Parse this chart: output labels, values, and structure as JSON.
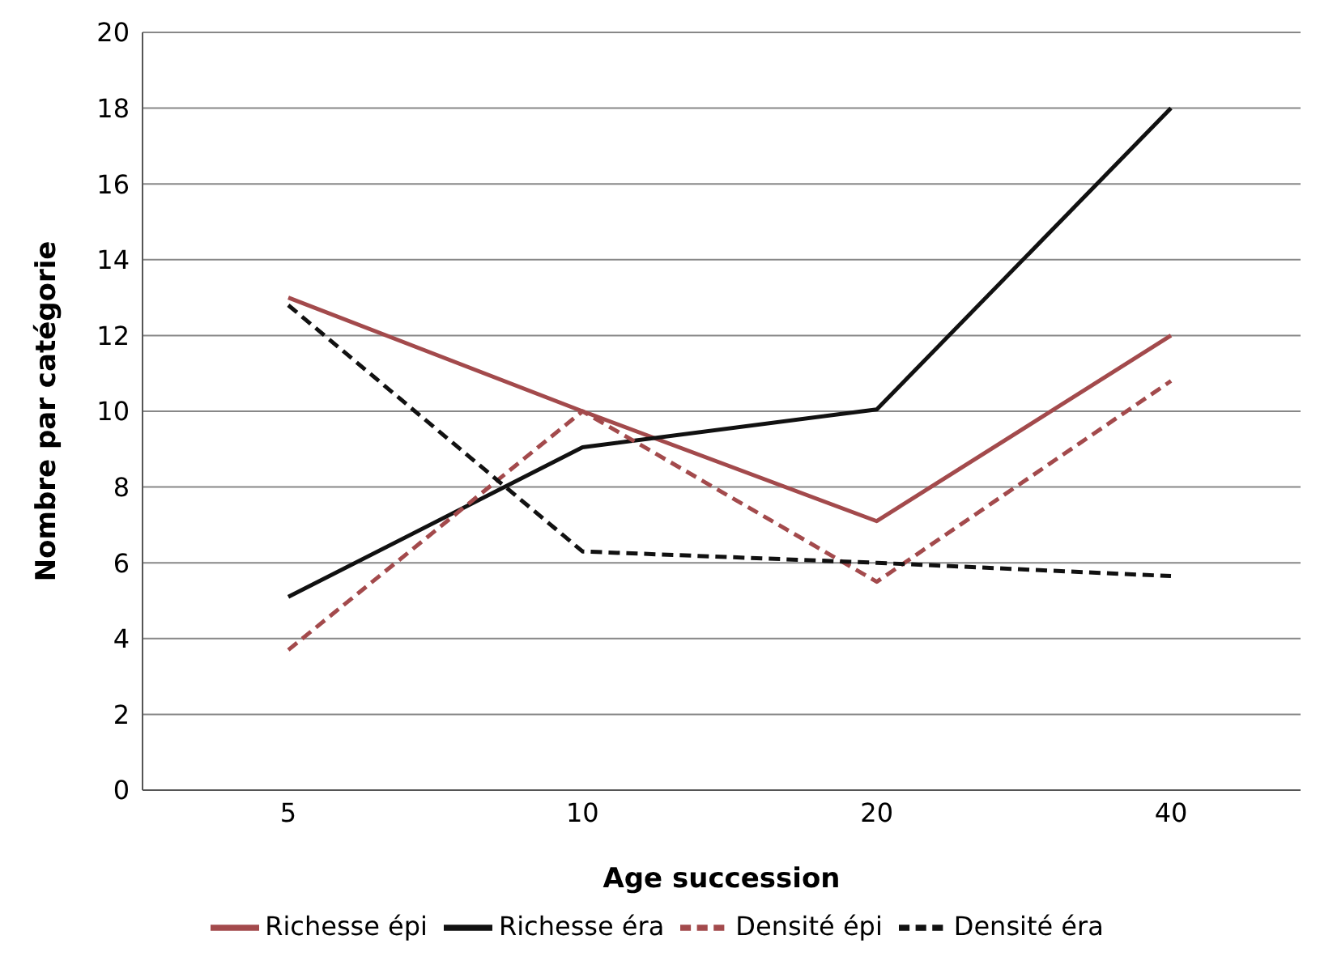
{
  "chart_data": {
    "type": "line",
    "xlabel": "Age succession",
    "ylabel": "Nombre par catégorie",
    "categories": [
      "5",
      "10",
      "20",
      "40"
    ],
    "series": [
      {
        "name": "Richesse épi",
        "color": "#a34a4c",
        "values": [
          13,
          10,
          7.1,
          12
        ],
        "line_style": "solid"
      },
      {
        "name": "Richesse éra",
        "color": "#111111",
        "values": [
          5.1,
          9.05,
          10.05,
          18
        ],
        "line_style": "solid"
      },
      {
        "name": "Densité épi",
        "color": "#a34a4c",
        "values": [
          3.7,
          10,
          5.5,
          10.8
        ],
        "line_style": "dashed"
      },
      {
        "name": "Densité éra",
        "color": "#111111",
        "values": [
          12.8,
          6.3,
          6,
          5.65
        ],
        "line_style": "dashed"
      }
    ],
    "ylim": [
      0,
      20
    ],
    "yticks": [
      0,
      2,
      4,
      6,
      8,
      10,
      12,
      14,
      16,
      18,
      20
    ],
    "grid": "y",
    "legend": "bottom",
    "marker": "none"
  }
}
